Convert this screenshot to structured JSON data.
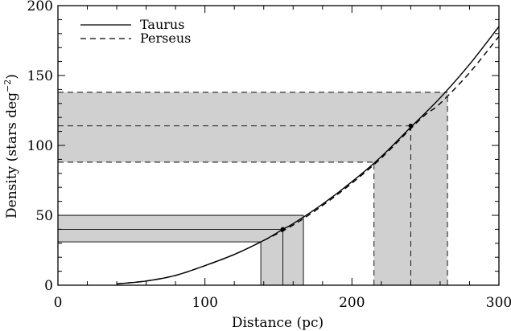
{
  "chart_data": {
    "type": "line",
    "title": "",
    "xlabel": "Distance (pc)",
    "ylabel_main": "Density (stars deg",
    "ylabel_sup": "−2",
    "ylabel_close": ")",
    "xlim": [
      0,
      300
    ],
    "ylim": [
      0,
      200
    ],
    "xticks": [
      0,
      100,
      200,
      300
    ],
    "yticks": [
      0,
      50,
      100,
      150,
      200
    ],
    "xtick_labels": [
      "0",
      "100",
      "200",
      "300"
    ],
    "ytick_labels": [
      "0",
      "50",
      "100",
      "150",
      "200"
    ],
    "grid": false,
    "legend_position": "top-left",
    "series": [
      {
        "name": "Taurus",
        "style": "solid",
        "color": "#000000",
        "x": [
          40,
          60,
          80,
          100,
          120,
          140,
          153,
          160,
          180,
          200,
          220,
          240,
          260,
          280,
          300
        ],
        "y": [
          1,
          3,
          7,
          14,
          22,
          32,
          40,
          44,
          58,
          74,
          92,
          113,
          134,
          158,
          185
        ]
      },
      {
        "name": "Perseus",
        "style": "dashed",
        "color": "#000000",
        "x": [
          40,
          60,
          80,
          100,
          120,
          140,
          160,
          180,
          200,
          220,
          240,
          250,
          260,
          280,
          300
        ],
        "y": [
          1,
          3,
          7,
          14,
          22,
          32,
          43,
          57,
          73,
          91,
          112,
          122,
          130,
          152,
          178
        ]
      }
    ],
    "annotations": [
      {
        "series": "Taurus",
        "style": "solid",
        "point": [
          153,
          40
        ],
        "x_range": [
          138,
          167
        ],
        "y_range": [
          31,
          50
        ],
        "fill": "#d0d0d0"
      },
      {
        "series": "Perseus",
        "style": "dashed",
        "point": [
          240,
          114
        ],
        "x_range": [
          215,
          265
        ],
        "y_range": [
          88,
          138
        ],
        "fill": "#d0d0d0"
      }
    ]
  }
}
